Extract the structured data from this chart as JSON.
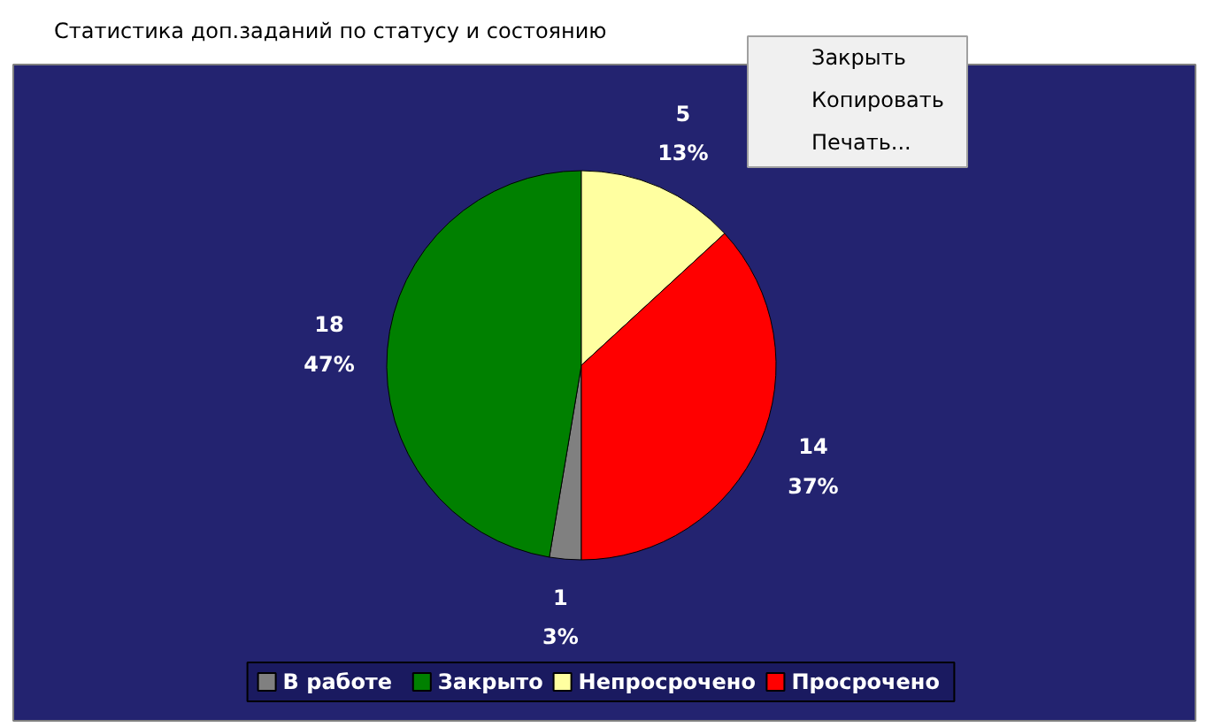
{
  "chart_data": {
    "type": "pie",
    "title": "Статистика доп.заданий по статусу и состоянию",
    "categories": [
      "В работе",
      "Закрыто",
      "Непросрочено",
      "Просрочено"
    ],
    "values": [
      1,
      18,
      5,
      14
    ],
    "colors": [
      "#808080",
      "#008000",
      "#ffffa0",
      "#ff0000"
    ],
    "value_labels": [
      "1\n3%",
      "18\n47%",
      "5\n13%",
      "14\n37%"
    ],
    "legend": "bottom",
    "annotations": [
      "Закрыть",
      "Копировать",
      "Печать..."
    ]
  }
}
